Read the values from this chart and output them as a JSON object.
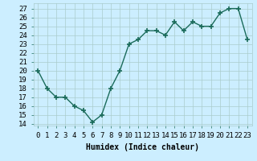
{
  "x": [
    0,
    1,
    2,
    3,
    4,
    5,
    6,
    7,
    8,
    9,
    10,
    11,
    12,
    13,
    14,
    15,
    16,
    17,
    18,
    19,
    20,
    21,
    22,
    23
  ],
  "y": [
    20,
    18,
    17,
    17,
    16,
    15.5,
    14.2,
    15,
    18,
    20,
    23,
    23.5,
    24.5,
    24.5,
    24,
    25.5,
    24.5,
    25.5,
    25,
    25,
    26.5,
    27,
    27,
    23.5
  ],
  "line_color": "#1a6b5a",
  "marker": "+",
  "marker_size": 4,
  "marker_lw": 1.2,
  "line_width": 1.0,
  "bg_color": "#cceeff",
  "grid_color": "#aacccc",
  "xlabel": "Humidex (Indice chaleur)",
  "ylim": [
    13.8,
    27.6
  ],
  "xlim": [
    -0.5,
    23.5
  ],
  "yticks": [
    14,
    15,
    16,
    17,
    18,
    19,
    20,
    21,
    22,
    23,
    24,
    25,
    26,
    27
  ],
  "xtick_labels": [
    "0",
    "1",
    "2",
    "3",
    "4",
    "5",
    "6",
    "7",
    "8",
    "9",
    "10",
    "11",
    "12",
    "13",
    "14",
    "15",
    "16",
    "17",
    "18",
    "19",
    "20",
    "21",
    "22",
    "23"
  ],
  "xlabel_fontsize": 7,
  "tick_fontsize": 6.5
}
